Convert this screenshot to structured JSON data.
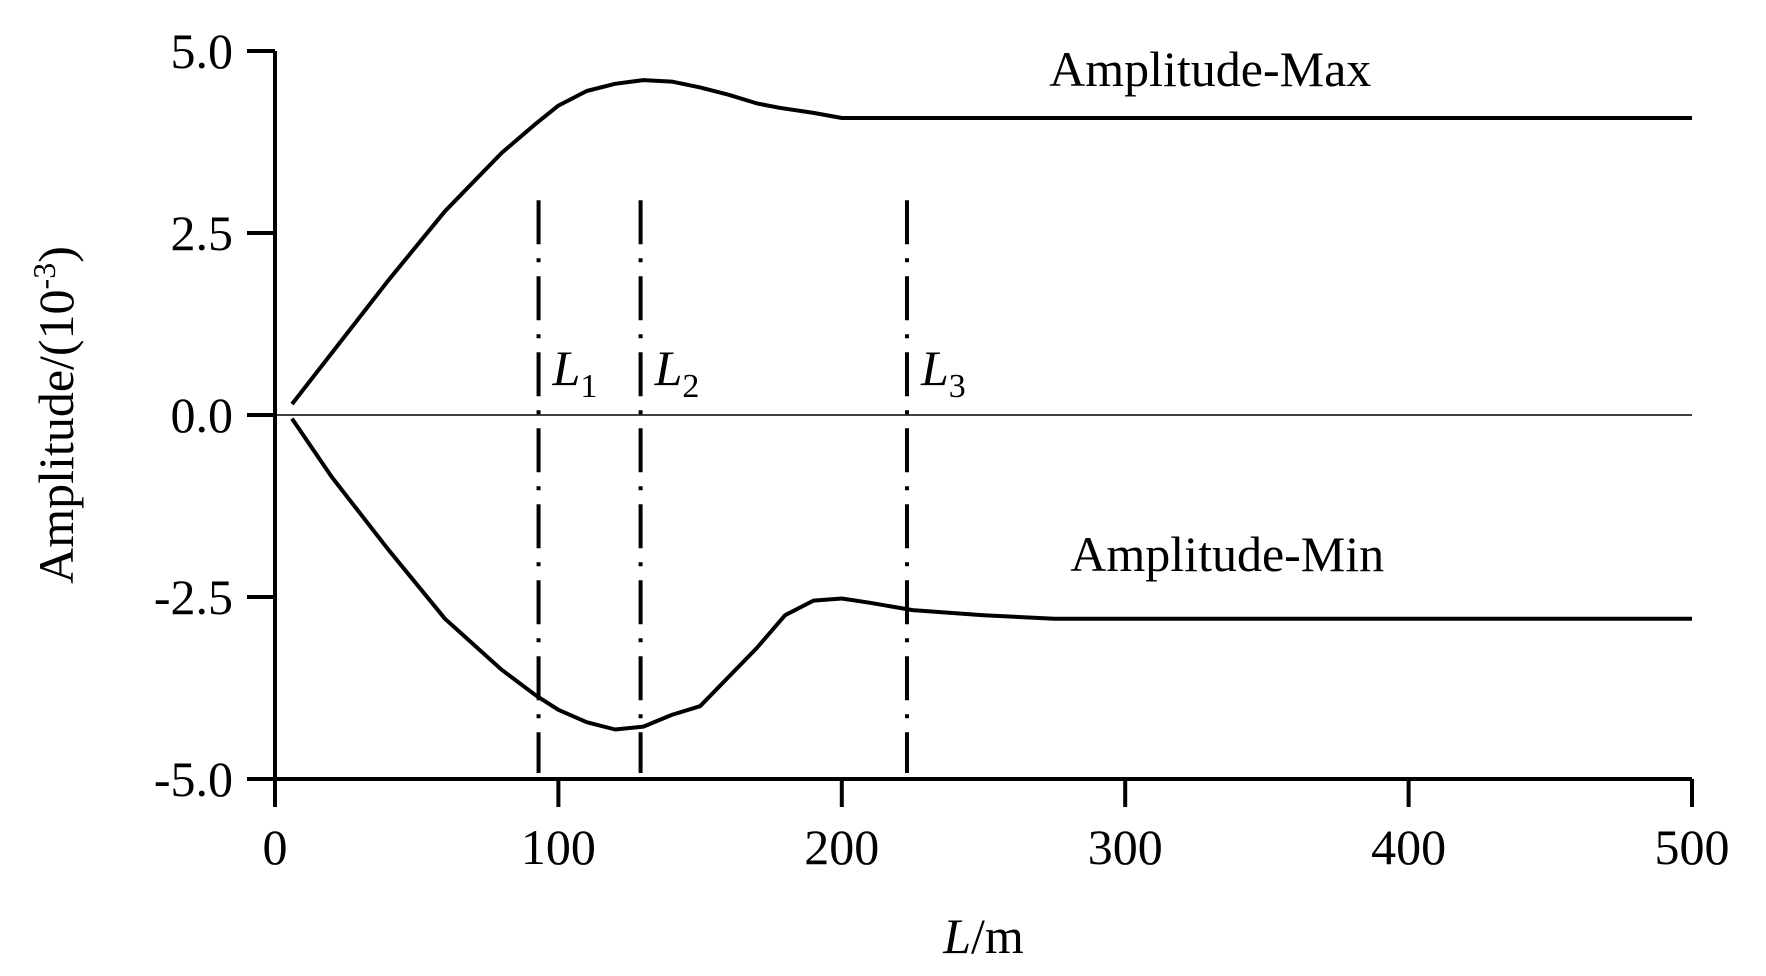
{
  "chart_data": {
    "type": "line",
    "xlabel_var": "L",
    "xlabel_unit": "/m",
    "ylabel": "Amplitude/(10",
    "ylabel_exp": "-3",
    "ylabel_close": ")",
    "xlim": [
      0,
      500
    ],
    "ylim": [
      -5.0,
      5.0
    ],
    "x_ticks": [
      0,
      100,
      200,
      300,
      400,
      500
    ],
    "x_tick_labels": [
      "0",
      "100",
      "200",
      "300",
      "400",
      "500"
    ],
    "y_ticks": [
      5.0,
      2.5,
      0.0,
      -2.5,
      -5.0
    ],
    "y_tick_labels": [
      "5.0",
      "2.5",
      "0.0",
      "-2.5",
      "-5.0"
    ],
    "zero_line": true,
    "grid": false,
    "series": [
      {
        "name": "Amplitude-Max",
        "points": [
          [
            6,
            0.15
          ],
          [
            20,
            0.85
          ],
          [
            40,
            1.85
          ],
          [
            60,
            2.8
          ],
          [
            80,
            3.6
          ],
          [
            92,
            4.0
          ],
          [
            100,
            4.25
          ],
          [
            110,
            4.45
          ],
          [
            120,
            4.55
          ],
          [
            130,
            4.6
          ],
          [
            140,
            4.58
          ],
          [
            150,
            4.5
          ],
          [
            160,
            4.4
          ],
          [
            170,
            4.28
          ],
          [
            178,
            4.22
          ],
          [
            190,
            4.15
          ],
          [
            200,
            4.08
          ],
          [
            300,
            4.08
          ],
          [
            400,
            4.08
          ],
          [
            500,
            4.08
          ]
        ]
      },
      {
        "name": "Amplitude-Min",
        "points": [
          [
            6,
            -0.05
          ],
          [
            20,
            -0.85
          ],
          [
            40,
            -1.85
          ],
          [
            60,
            -2.8
          ],
          [
            80,
            -3.5
          ],
          [
            92,
            -3.85
          ],
          [
            100,
            -4.05
          ],
          [
            110,
            -4.22
          ],
          [
            120,
            -4.32
          ],
          [
            130,
            -4.28
          ],
          [
            140,
            -4.12
          ],
          [
            150,
            -4.0
          ],
          [
            160,
            -3.6
          ],
          [
            170,
            -3.2
          ],
          [
            180,
            -2.75
          ],
          [
            190,
            -2.55
          ],
          [
            200,
            -2.52
          ],
          [
            210,
            -2.58
          ],
          [
            225,
            -2.68
          ],
          [
            250,
            -2.75
          ],
          [
            275,
            -2.8
          ],
          [
            400,
            -2.8
          ],
          [
            500,
            -2.8
          ]
        ]
      }
    ],
    "series_label_positions": [
      "upper",
      "lower"
    ],
    "markers": [
      {
        "label": "L",
        "sub": "1",
        "x": 93
      },
      {
        "label": "L",
        "sub": "2",
        "x": 129
      },
      {
        "label": "L",
        "sub": "3",
        "x": 223
      }
    ]
  }
}
